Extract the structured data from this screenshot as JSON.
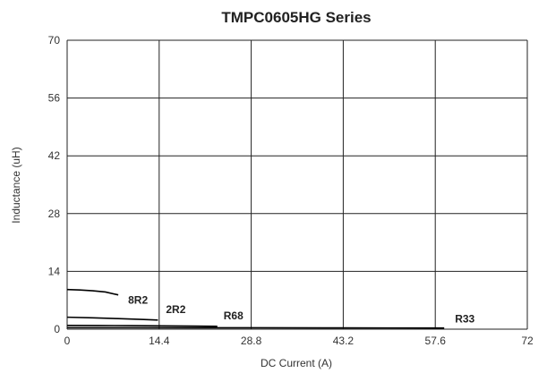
{
  "chart_data": {
    "type": "line",
    "title": "TMPC0605HG Series",
    "xlabel": "DC Current (A)",
    "ylabel": "Inductance (uH)",
    "xlim": [
      0,
      72
    ],
    "ylim": [
      0,
      70
    ],
    "x_ticks": [
      "0",
      "14.4",
      "28.8",
      "43.2",
      "57.6",
      "72"
    ],
    "y_ticks": [
      "0",
      "14",
      "28",
      "42",
      "56",
      "70"
    ],
    "grid": true,
    "series": [
      {
        "name": "8R2",
        "color": "#000000",
        "x": [
          0,
          2,
          4,
          6,
          8
        ],
        "y": [
          9.6,
          9.5,
          9.3,
          9.0,
          8.3
        ]
      },
      {
        "name": "2R2",
        "color": "#000000",
        "x": [
          0,
          4,
          8,
          12,
          14.2
        ],
        "y": [
          2.9,
          2.75,
          2.55,
          2.35,
          2.2
        ]
      },
      {
        "name": "R68",
        "color": "#000000",
        "x": [
          0,
          5,
          10,
          15,
          20,
          23.5
        ],
        "y": [
          0.9,
          0.88,
          0.85,
          0.8,
          0.74,
          0.7
        ]
      },
      {
        "name": "R33",
        "color": "#000000",
        "x": [
          0,
          10,
          20,
          30,
          40,
          50,
          59
        ],
        "y": [
          0.35,
          0.35,
          0.34,
          0.33,
          0.32,
          0.3,
          0.28
        ]
      }
    ]
  }
}
